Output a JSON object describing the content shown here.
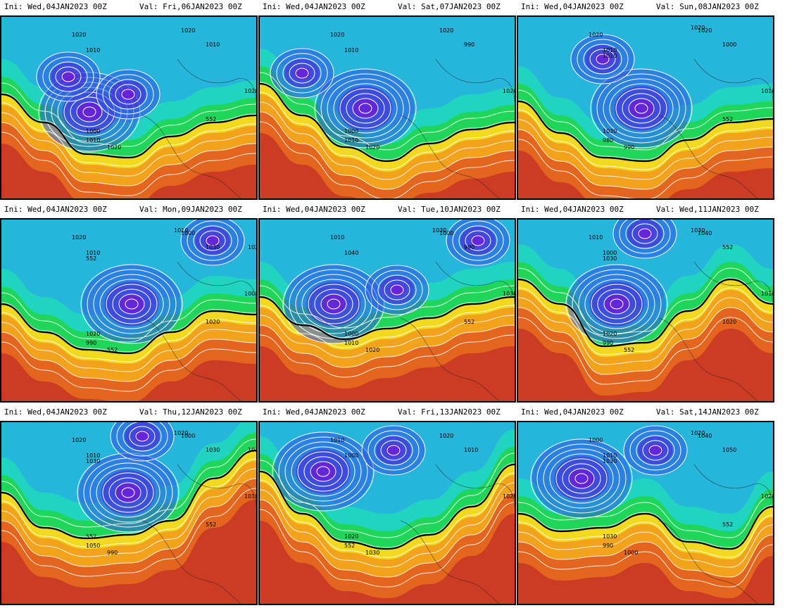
{
  "panels": [
    {
      "ini": "Ini:  Wed,04JAN2023 00Z",
      "val": "Val:  Fri,06JAN2023 00Z",
      "isobar_labels": [
        "1020",
        "1010",
        "1020",
        "1010",
        "1000",
        "1010",
        "1020",
        "1020",
        "552"
      ]
    },
    {
      "ini": "Ini:  Wed,04JAN2023 00Z",
      "val": "Val:  Sat,07JAN2023 00Z",
      "isobar_labels": [
        "1020",
        "1010",
        "1020",
        "990",
        "1000",
        "1010",
        "1020",
        "1020"
      ]
    },
    {
      "ini": "Ini:  Wed,04JAN2023 00Z",
      "val": "Val:  Sun,08JAN2023 00Z",
      "isobar_labels": [
        "1020",
        "1010",
        "1020",
        "1000",
        "1030",
        "980",
        "990",
        "1010",
        "552",
        "1020",
        "1010"
      ]
    },
    {
      "ini": "Ini:  Wed,04JAN2023 00Z",
      "val": "Val:  Mon,09JAN2023 00Z",
      "isobar_labels": [
        "1020",
        "1010",
        "1000",
        "1030",
        "1020",
        "990",
        "552",
        "1000",
        "1020",
        "1010",
        "552",
        "1020"
      ]
    },
    {
      "ini": "Ini:  Wed,04JAN2023 00Z",
      "val": "Val:  Tue,10JAN2023 00Z",
      "isobar_labels": [
        "1010",
        "1040",
        "1000",
        "990",
        "1000",
        "1010",
        "1020",
        "1030",
        "552",
        "1030"
      ]
    },
    {
      "ini": "Ini:  Wed,04JAN2023 00Z",
      "val": "Val:  Wed,11JAN2023 00Z",
      "isobar_labels": [
        "1010",
        "1000",
        "1040",
        "552",
        "1020",
        "990",
        "552",
        "1010",
        "1020",
        "1030",
        "1030"
      ]
    },
    {
      "ini": "Ini:  Wed,04JAN2023 00Z",
      "val": "Val:  Thu,12JAN2023 00Z",
      "isobar_labels": [
        "1020",
        "1010",
        "1000",
        "1030",
        "552",
        "1050",
        "990",
        "1010",
        "552",
        "1020",
        "1030",
        "1020"
      ]
    },
    {
      "ini": "Ini:  Wed,04JAN2023 00Z",
      "val": "Val:  Fri,13JAN2023 00Z",
      "isobar_labels": [
        "1010",
        "1000",
        "1020",
        "1010",
        "1020",
        "552",
        "1030",
        "1020"
      ]
    },
    {
      "ini": "Ini:  Wed,04JAN2023 00Z",
      "val": "Val:  Sat,14JAN2023 00Z",
      "isobar_labels": [
        "1000",
        "1010",
        "1040",
        "1050",
        "1030",
        "990",
        "1000",
        "1020",
        "552",
        "1020",
        "1030"
      ]
    }
  ],
  "colors": {
    "deep_purple": "#8a00d4",
    "purple": "#4a2ad8",
    "blue": "#2f55e6",
    "lightblue": "#2aa8e6",
    "cyan": "#22d3d3",
    "green": "#1fd65a",
    "yellow": "#f2d81e",
    "orange": "#f3a21c",
    "darkorange": "#e4661e",
    "red": "#cc3c24",
    "isobar": "#ffffff",
    "contour_552": "#000000"
  }
}
